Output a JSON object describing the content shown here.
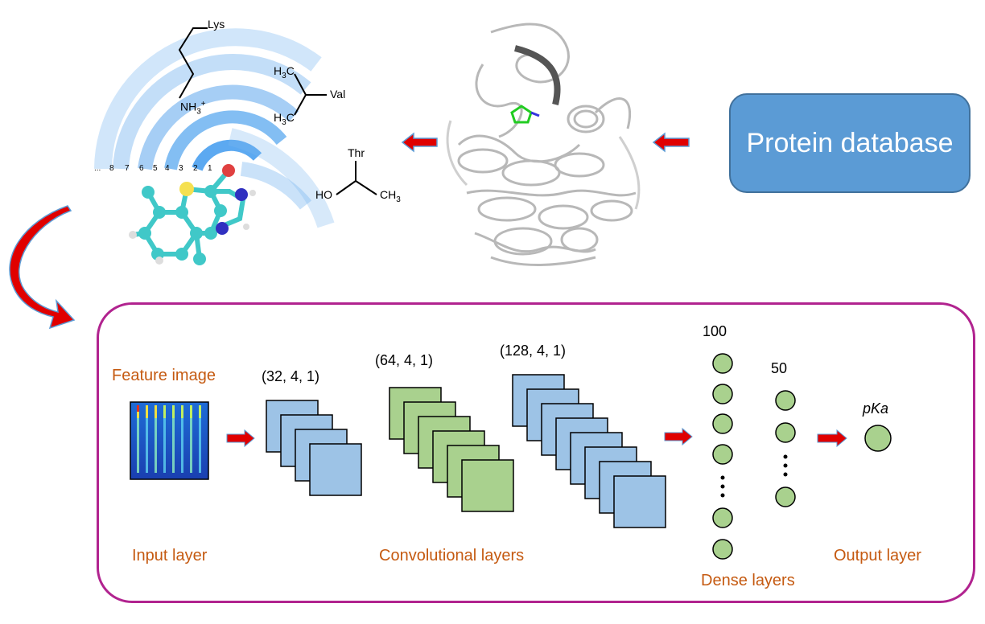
{
  "protein_database": "Protein database",
  "residues": {
    "lys": "Lys",
    "nh3": "NH",
    "nh3_sub": "3",
    "nh3_sup": "+",
    "h3c_top": "H",
    "h3c_top_sub": "3",
    "h3c_top_c": "C",
    "val": "Val",
    "h3c_bot": "H",
    "h3c_bot_sub": "3",
    "h3c_bot_c": "C",
    "thr": "Thr",
    "ho": "HO",
    "ch3": "CH",
    "ch3_sub": "3"
  },
  "ring_numbers": [
    "...",
    "8",
    "7",
    "6",
    "5",
    "4",
    "3",
    "2",
    "1"
  ],
  "cnn": {
    "feature_image": "Feature image",
    "input_layer": "Input layer",
    "conv_layers": "Convolutional layers",
    "dense_layers": "Dense layers",
    "output_layer": "Output layer",
    "dim1": "(32, 4, 1)",
    "dim2": "(64, 4, 1)",
    "dim3": "(128, 4, 1)",
    "dense1": "100",
    "dense2": "50",
    "output": "pKa"
  },
  "colors": {
    "blue_square": "#9dc3e6",
    "green_square": "#a9d18e",
    "neuron": "#a9d18e",
    "arrow": "#e00000",
    "arrow_outline": "#5b9bd5",
    "label_orange": "#c55a11",
    "box_border": "#b1238f"
  }
}
